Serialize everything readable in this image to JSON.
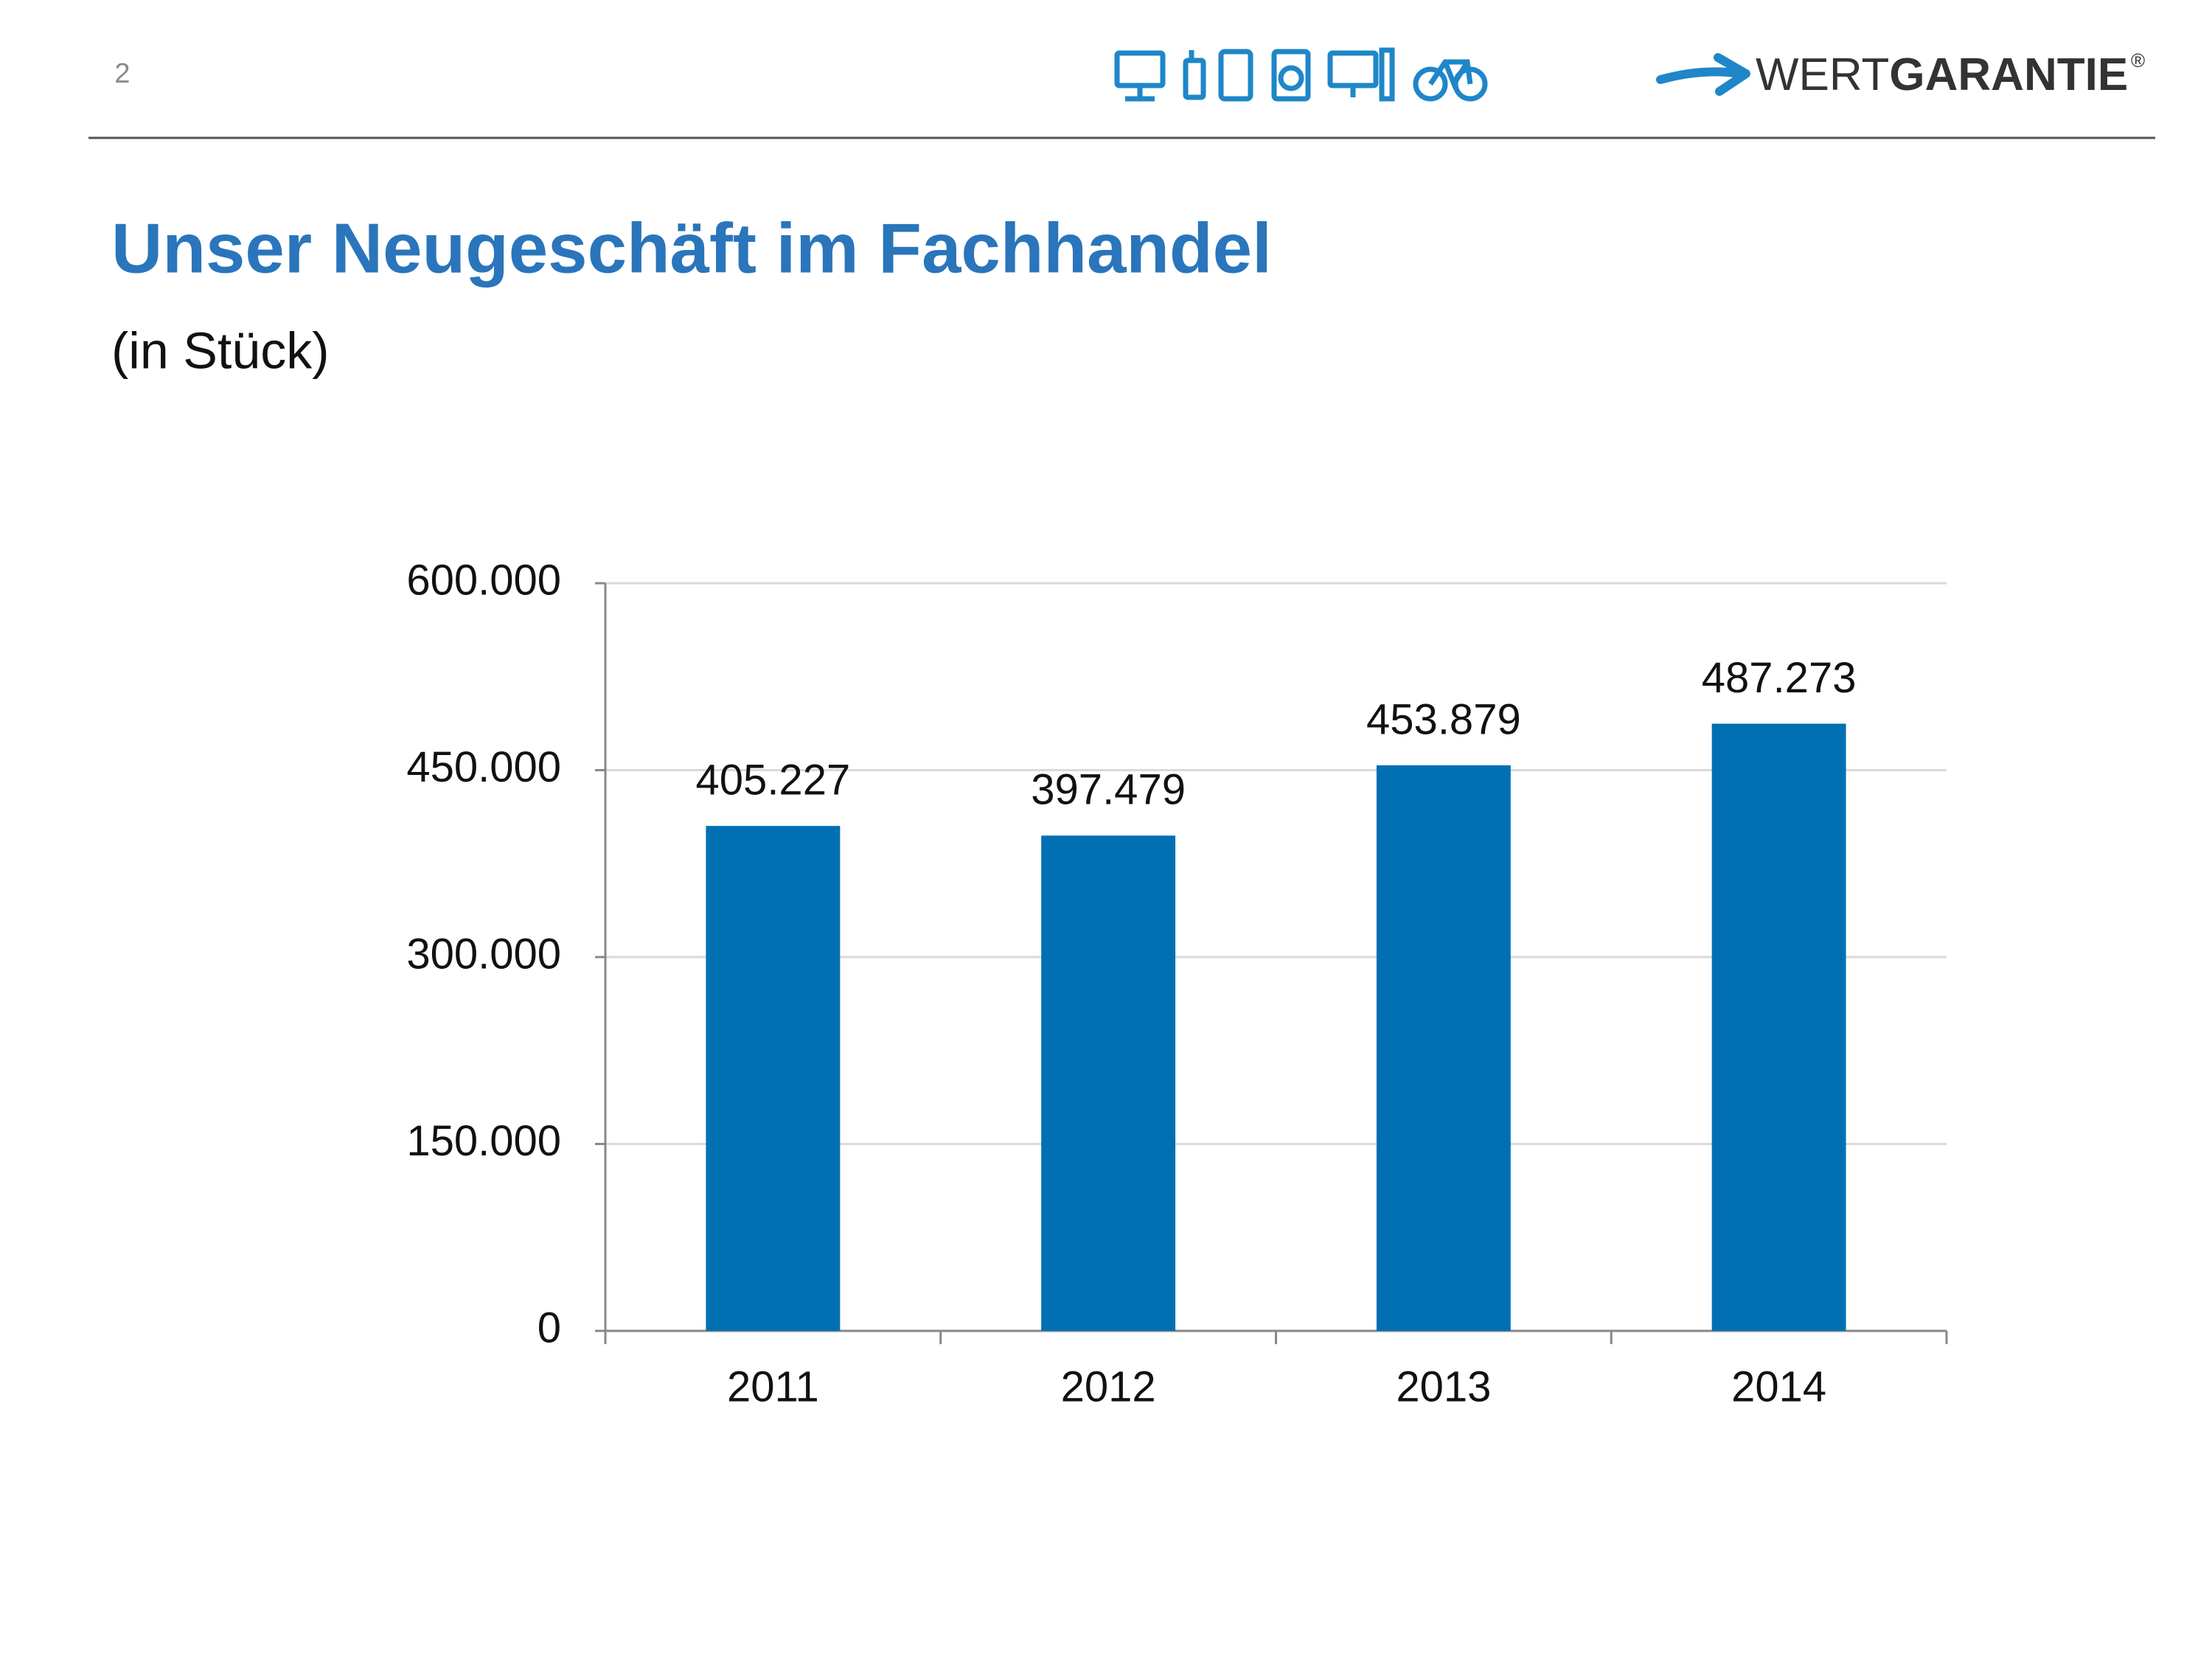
{
  "header": {
    "page_number": "2",
    "logo_light": "WERT",
    "logo_bold": "GARANTIE",
    "logo_mark": "®"
  },
  "chart_data": {
    "type": "bar",
    "title": "Unser Neugeschäft im Fachhandel",
    "subtitle": "(in Stück)",
    "categories": [
      "2011",
      "2012",
      "2013",
      "2014"
    ],
    "values": [
      405227,
      397479,
      453879,
      487273
    ],
    "value_labels": [
      "405.227",
      "397.479",
      "453.879",
      "487.273"
    ],
    "color": "#0070b3",
    "ylim": [
      0,
      600000
    ],
    "yticks": [
      0,
      {
        "value": 150000,
        "label": "150.000"
      },
      {
        "value": 300000,
        "label": "300.000"
      },
      {
        "value": 450000,
        "label": "450.000"
      },
      {
        "value": 600000,
        "label": "600.000"
      }
    ],
    "grid": true
  }
}
